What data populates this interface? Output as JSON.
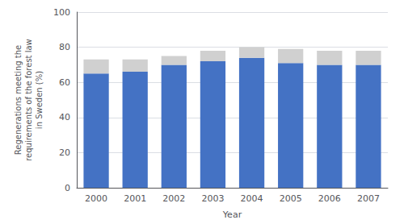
{
  "chart_data": {
    "type": "bar",
    "xlabel": "Year",
    "ylabel": "Regenerations meeting the\nrequirements of the forest law\nin Sweden (%)",
    "categories": [
      "2000",
      "2001",
      "2002",
      "2003",
      "2004",
      "2005",
      "2006",
      "2007"
    ],
    "series": [
      {
        "color": "#4472C4",
        "values": [
          65,
          66,
          70,
          72,
          74,
          71,
          70,
          70
        ]
      },
      {
        "color": "#D0D0D0",
        "values": [
          8,
          7,
          5,
          6,
          6,
          8,
          8,
          8
        ]
      }
    ],
    "ylim": [
      0,
      100
    ],
    "yticks": [
      0,
      20,
      40,
      60,
      80,
      100
    ],
    "grid": true,
    "stacked": true
  }
}
